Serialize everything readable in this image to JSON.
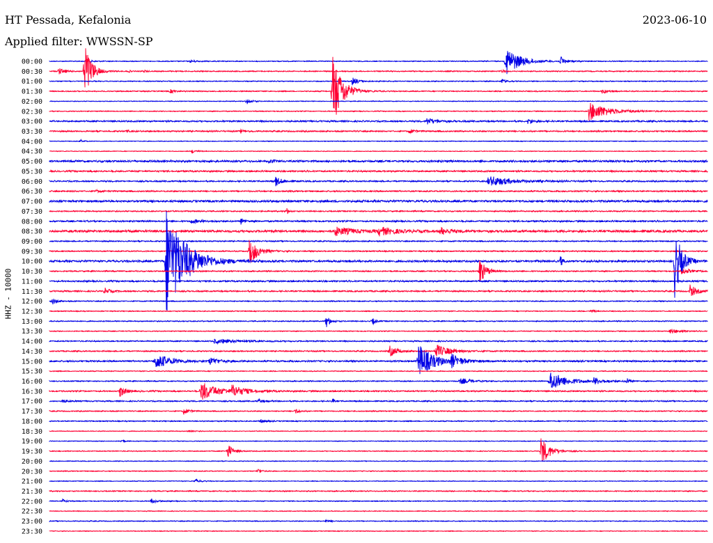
{
  "header": {
    "station": "HT Pessada, Kefalonia",
    "date": "2023-06-10",
    "filter": "Applied filter: WWSSN-SP",
    "channel": "HHZ - 10000"
  },
  "colors": {
    "even": "#0000e6",
    "odd": "#ff0033"
  },
  "chart_data": {
    "type": "line",
    "title": "HT Pessada, Kefalonia",
    "subtitle": "Applied filter: WWSSN-SP",
    "ylabel": "HHZ - 10000",
    "y_tick_labels": [
      "00:00",
      "00:30",
      "01:00",
      "01:30",
      "02:00",
      "02:30",
      "03:00",
      "03:30",
      "04:00",
      "04:30",
      "05:00",
      "05:30",
      "06:00",
      "06:30",
      "07:00",
      "07:30",
      "08:00",
      "08:30",
      "09:00",
      "09:30",
      "10:00",
      "10:30",
      "11:00",
      "11:30",
      "12:00",
      "12:30",
      "13:00",
      "13:30",
      "14:00",
      "14:30",
      "15:00",
      "15:30",
      "16:00",
      "16:30",
      "17:00",
      "17:30",
      "18:00",
      "18:30",
      "19:00",
      "19:30",
      "20:00",
      "20:30",
      "21:00",
      "21:30",
      "22:00",
      "22:30",
      "23:00",
      "23:30"
    ],
    "x_range_minutes": [
      0,
      30
    ],
    "noise_level": [
      0.5,
      0.6,
      0.5,
      0.6,
      0.4,
      0.5,
      0.9,
      0.8,
      0.4,
      0.4,
      1.2,
      0.9,
      0.8,
      0.8,
      1.3,
      0.7,
      0.9,
      1.4,
      0.7,
      0.7,
      1.2,
      0.7,
      0.9,
      0.8,
      0.6,
      0.5,
      0.6,
      0.5,
      0.7,
      0.7,
      0.9,
      0.5,
      0.6,
      0.8,
      0.7,
      0.6,
      0.6,
      0.4,
      0.4,
      0.5,
      0.4,
      0.5,
      0.4,
      0.6,
      0.5,
      0.4,
      0.5,
      0.4
    ],
    "events": [
      {
        "line": 0,
        "t": 1.9,
        "amp": 1,
        "dur": 0.6
      },
      {
        "line": 0,
        "t": 6.4,
        "amp": 2,
        "dur": 0.6
      },
      {
        "line": 0,
        "t": 20.8,
        "amp": 22,
        "dur": 1.3
      },
      {
        "line": 0,
        "t": 23.3,
        "amp": 7,
        "dur": 0.5
      },
      {
        "line": 1,
        "t": 0.4,
        "amp": 5,
        "dur": 0.6
      },
      {
        "line": 1,
        "t": 1.6,
        "amp": 48,
        "dur": 0.6
      },
      {
        "line": 1,
        "t": 3.6,
        "amp": 2,
        "dur": 0.2
      },
      {
        "line": 1,
        "t": 4.3,
        "amp": 2,
        "dur": 0.2
      },
      {
        "line": 1,
        "t": 20.6,
        "amp": 3,
        "dur": 0.3
      },
      {
        "line": 2,
        "t": 13.8,
        "amp": 6,
        "dur": 0.6
      },
      {
        "line": 2,
        "t": 20.6,
        "amp": 4,
        "dur": 0.4
      },
      {
        "line": 3,
        "t": 12.9,
        "amp": 55,
        "dur": 0.9
      },
      {
        "line": 3,
        "t": 5.5,
        "amp": 3,
        "dur": 0.4
      },
      {
        "line": 3,
        "t": 25.2,
        "amp": 3,
        "dur": 0.6
      },
      {
        "line": 4,
        "t": 9.0,
        "amp": 6,
        "dur": 0.4
      },
      {
        "line": 5,
        "t": 24.6,
        "amp": 14,
        "dur": 1.8
      },
      {
        "line": 6,
        "t": 17.2,
        "amp": 5,
        "dur": 0.9
      },
      {
        "line": 6,
        "t": 21.8,
        "amp": 4,
        "dur": 0.5
      },
      {
        "line": 7,
        "t": 3.5,
        "amp": 3,
        "dur": 0.2
      },
      {
        "line": 7,
        "t": 8.7,
        "amp": 3,
        "dur": 0.4
      },
      {
        "line": 7,
        "t": 16.4,
        "amp": 4,
        "dur": 0.4
      },
      {
        "line": 8,
        "t": 1.4,
        "amp": 2,
        "dur": 0.3
      },
      {
        "line": 9,
        "t": 6.5,
        "amp": 3,
        "dur": 0.4
      },
      {
        "line": 10,
        "t": 10.0,
        "amp": 3,
        "dur": 0.6
      },
      {
        "line": 12,
        "t": 10.3,
        "amp": 7,
        "dur": 0.6
      },
      {
        "line": 12,
        "t": 20.0,
        "amp": 8,
        "dur": 2.0
      },
      {
        "line": 13,
        "t": 2.1,
        "amp": 2,
        "dur": 0.4
      },
      {
        "line": 15,
        "t": 10.8,
        "amp": 6,
        "dur": 0.2
      },
      {
        "line": 16,
        "t": 6.4,
        "amp": 3,
        "dur": 1.0
      },
      {
        "line": 16,
        "t": 8.7,
        "amp": 5,
        "dur": 0.3
      },
      {
        "line": 17,
        "t": 13.0,
        "amp": 6,
        "dur": 2.0
      },
      {
        "line": 17,
        "t": 15.0,
        "amp": 6,
        "dur": 1.6
      },
      {
        "line": 17,
        "t": 17.8,
        "amp": 5,
        "dur": 1.2
      },
      {
        "line": 19,
        "t": 9.1,
        "amp": 22,
        "dur": 0.8
      },
      {
        "line": 20,
        "t": 5.3,
        "amp": 80,
        "dur": 1.8
      },
      {
        "line": 20,
        "t": 23.3,
        "amp": 8,
        "dur": 0.2
      },
      {
        "line": 20,
        "t": 28.5,
        "amp": 55,
        "dur": 0.6
      },
      {
        "line": 21,
        "t": 19.6,
        "amp": 20,
        "dur": 0.6
      },
      {
        "line": 21,
        "t": 28.8,
        "amp": 5,
        "dur": 0.8
      },
      {
        "line": 23,
        "t": 2.5,
        "amp": 5,
        "dur": 0.5
      },
      {
        "line": 23,
        "t": 29.2,
        "amp": 10,
        "dur": 0.6
      },
      {
        "line": 24,
        "t": 0.1,
        "amp": 6,
        "dur": 0.4
      },
      {
        "line": 25,
        "t": 24.7,
        "amp": 3,
        "dur": 0.3
      },
      {
        "line": 26,
        "t": 12.6,
        "amp": 10,
        "dur": 0.4
      },
      {
        "line": 26,
        "t": 14.7,
        "amp": 6,
        "dur": 0.3
      },
      {
        "line": 27,
        "t": 28.3,
        "amp": 4,
        "dur": 0.8
      },
      {
        "line": 28,
        "t": 7.5,
        "amp": 3,
        "dur": 2.5
      },
      {
        "line": 29,
        "t": 15.5,
        "amp": 8,
        "dur": 0.8
      },
      {
        "line": 29,
        "t": 17.6,
        "amp": 10,
        "dur": 1.3
      },
      {
        "line": 30,
        "t": 4.8,
        "amp": 12,
        "dur": 1.5
      },
      {
        "line": 30,
        "t": 7.3,
        "amp": 5,
        "dur": 1.0
      },
      {
        "line": 30,
        "t": 16.8,
        "amp": 26,
        "dur": 1.4
      },
      {
        "line": 30,
        "t": 18.3,
        "amp": 9,
        "dur": 1.0
      },
      {
        "line": 32,
        "t": 18.7,
        "amp": 4,
        "dur": 1.2
      },
      {
        "line": 32,
        "t": 22.8,
        "amp": 15,
        "dur": 1.5
      },
      {
        "line": 32,
        "t": 24.8,
        "amp": 5,
        "dur": 1.0
      },
      {
        "line": 32,
        "t": 26.3,
        "amp": 5,
        "dur": 0.3
      },
      {
        "line": 33,
        "t": 3.2,
        "amp": 8,
        "dur": 0.6
      },
      {
        "line": 33,
        "t": 6.9,
        "amp": 14,
        "dur": 1.6
      },
      {
        "line": 33,
        "t": 8.3,
        "amp": 8,
        "dur": 1.2
      },
      {
        "line": 34,
        "t": 0.6,
        "amp": 3,
        "dur": 0.4
      },
      {
        "line": 34,
        "t": 9.5,
        "amp": 3,
        "dur": 0.6
      },
      {
        "line": 34,
        "t": 12.9,
        "amp": 4,
        "dur": 0.2
      },
      {
        "line": 35,
        "t": 6.1,
        "amp": 5,
        "dur": 0.5
      },
      {
        "line": 35,
        "t": 11.2,
        "amp": 5,
        "dur": 0.3
      },
      {
        "line": 36,
        "t": 9.6,
        "amp": 3,
        "dur": 0.4
      },
      {
        "line": 37,
        "t": 6.3,
        "amp": 2,
        "dur": 0.4
      },
      {
        "line": 38,
        "t": 3.3,
        "amp": 3,
        "dur": 0.2
      },
      {
        "line": 39,
        "t": 8.1,
        "amp": 12,
        "dur": 0.5
      },
      {
        "line": 39,
        "t": 22.4,
        "amp": 22,
        "dur": 0.8
      },
      {
        "line": 41,
        "t": 9.5,
        "amp": 4,
        "dur": 0.3
      },
      {
        "line": 42,
        "t": 6.6,
        "amp": 3,
        "dur": 0.5
      },
      {
        "line": 44,
        "t": 0.6,
        "amp": 3,
        "dur": 0.3
      },
      {
        "line": 44,
        "t": 4.6,
        "amp": 4,
        "dur": 0.5
      },
      {
        "line": 46,
        "t": 12.6,
        "amp": 2,
        "dur": 0.4
      }
    ]
  }
}
